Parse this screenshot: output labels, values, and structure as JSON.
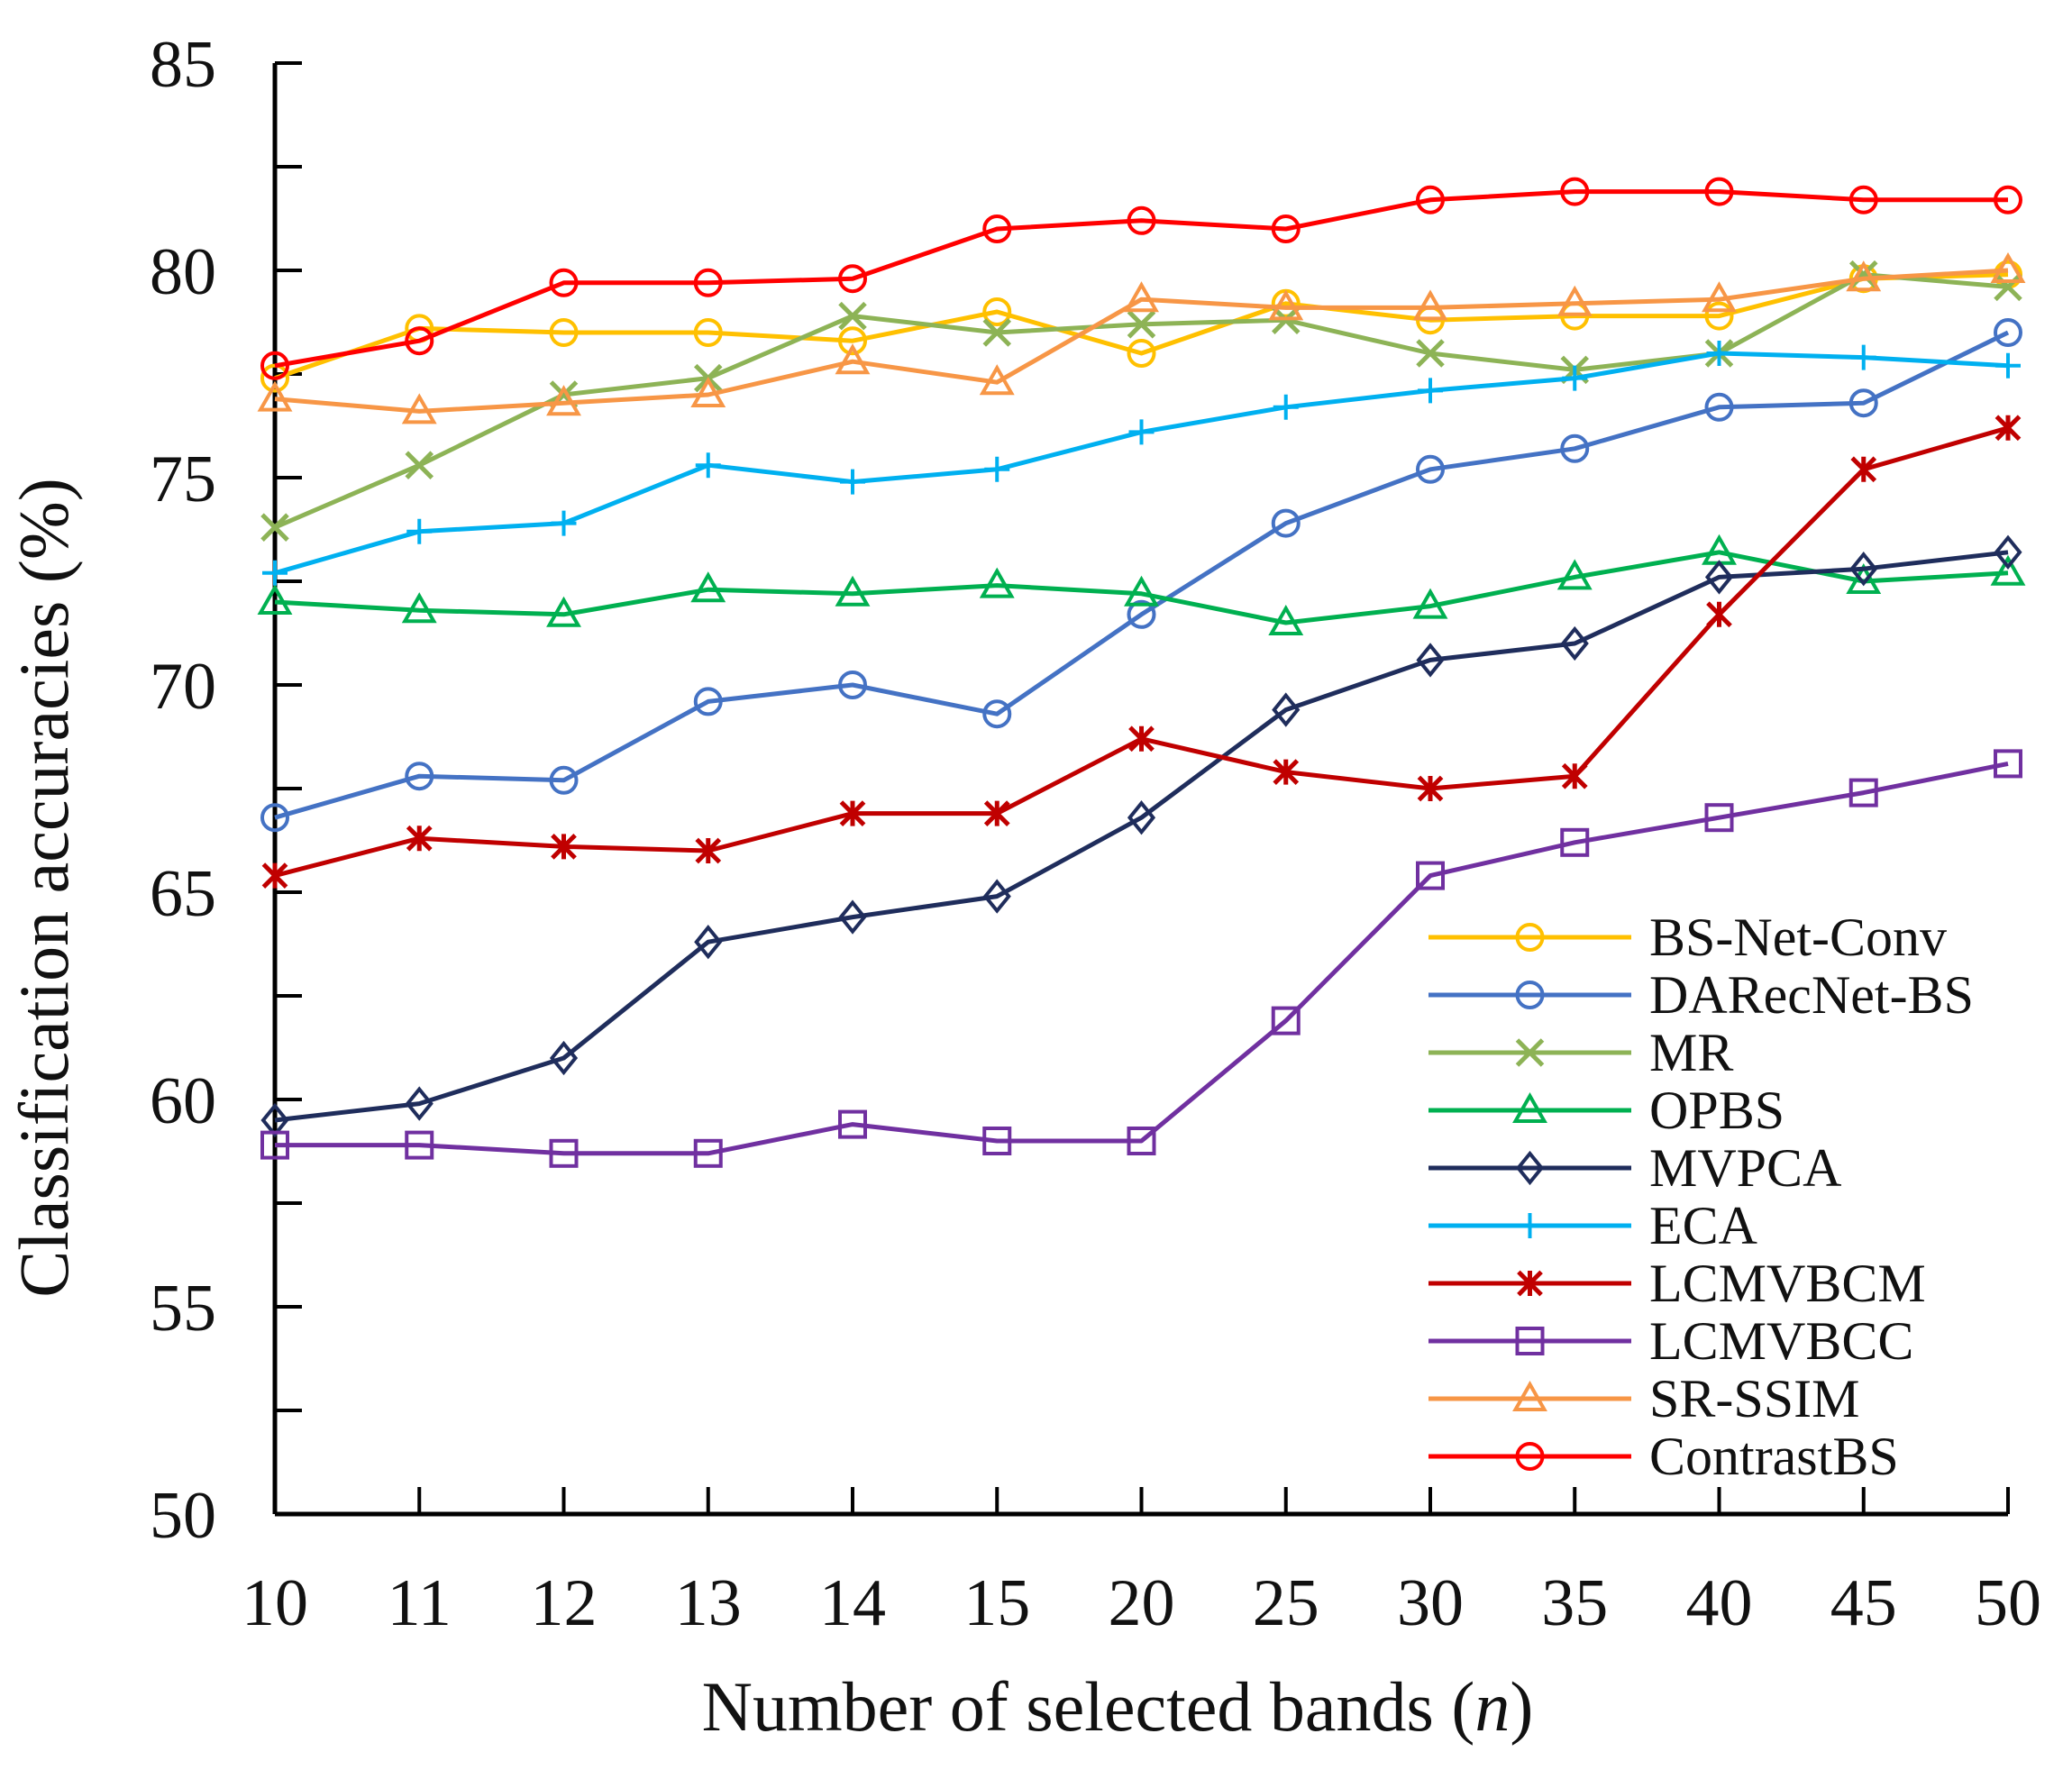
{
  "chart_data": {
    "type": "line",
    "title": "",
    "xlabel": "Number of selected bands",
    "xlabel_var": "n",
    "ylabel": "Classification accuracies (%)",
    "ylim": [
      50,
      85
    ],
    "yticks": [
      50,
      55,
      60,
      65,
      70,
      75,
      80,
      85
    ],
    "grid": false,
    "legend_position": "bottom-right",
    "categories": [
      "10",
      "11",
      "12",
      "13",
      "14",
      "15",
      "20",
      "25",
      "30",
      "35",
      "40",
      "45",
      "50"
    ],
    "series": [
      {
        "name": "BS-Net-Conv",
        "color": "#FFC000",
        "marker": "circle",
        "values": [
          77.4,
          78.6,
          78.5,
          78.5,
          78.3,
          79.0,
          78.0,
          79.2,
          78.8,
          78.9,
          78.9,
          79.8,
          79.9
        ]
      },
      {
        "name": "DARecNet-BS",
        "color": "#4472C4",
        "marker": "circle",
        "values": [
          66.8,
          67.8,
          67.7,
          69.6,
          70.0,
          69.3,
          71.7,
          73.9,
          75.2,
          75.7,
          76.7,
          76.8,
          78.5
        ]
      },
      {
        "name": "MR",
        "color": "#8DB356",
        "marker": "x",
        "values": [
          73.8,
          75.3,
          77.0,
          77.4,
          78.9,
          78.5,
          78.7,
          78.8,
          78.0,
          77.6,
          78.0,
          79.9,
          79.6
        ]
      },
      {
        "name": "OPBS",
        "color": "#00B050",
        "marker": "triangle",
        "values": [
          72.0,
          71.8,
          71.7,
          72.3,
          72.2,
          72.4,
          72.2,
          71.5,
          71.9,
          72.6,
          73.2,
          72.5,
          72.7
        ]
      },
      {
        "name": "MVPCA",
        "color": "#1F2D5C",
        "marker": "diamond",
        "values": [
          59.5,
          59.9,
          61.0,
          63.8,
          64.4,
          64.9,
          66.8,
          69.4,
          70.6,
          71.0,
          72.6,
          72.8,
          73.2
        ]
      },
      {
        "name": "ECA",
        "color": "#00B0F0",
        "marker": "plus",
        "values": [
          72.7,
          73.7,
          73.9,
          75.3,
          74.9,
          75.2,
          76.1,
          76.7,
          77.1,
          77.4,
          78.0,
          77.9,
          77.7
        ]
      },
      {
        "name": "LCMVBCM",
        "color": "#C00000",
        "marker": "asterisk",
        "values": [
          65.4,
          66.3,
          66.1,
          66.0,
          66.9,
          66.9,
          68.7,
          67.9,
          67.5,
          67.8,
          71.7,
          75.2,
          76.2
        ]
      },
      {
        "name": "LCMVBCC",
        "color": "#7030A0",
        "marker": "square",
        "values": [
          58.9,
          58.9,
          58.7,
          58.7,
          59.4,
          59.0,
          59.0,
          61.9,
          65.4,
          66.2,
          66.8,
          67.4,
          68.1
        ]
      },
      {
        "name": "SR-SSIM",
        "color": "#F79646",
        "marker": "triangle",
        "values": [
          76.9,
          76.6,
          76.8,
          77.0,
          77.8,
          77.3,
          79.3,
          79.1,
          79.1,
          79.2,
          79.3,
          79.8,
          80.0
        ]
      },
      {
        "name": "ContrastBS",
        "color": "#FF0000",
        "marker": "circle",
        "values": [
          77.7,
          78.3,
          79.7,
          79.7,
          79.8,
          81.0,
          81.2,
          81.0,
          81.7,
          81.9,
          81.9,
          81.7,
          81.7
        ]
      }
    ]
  }
}
